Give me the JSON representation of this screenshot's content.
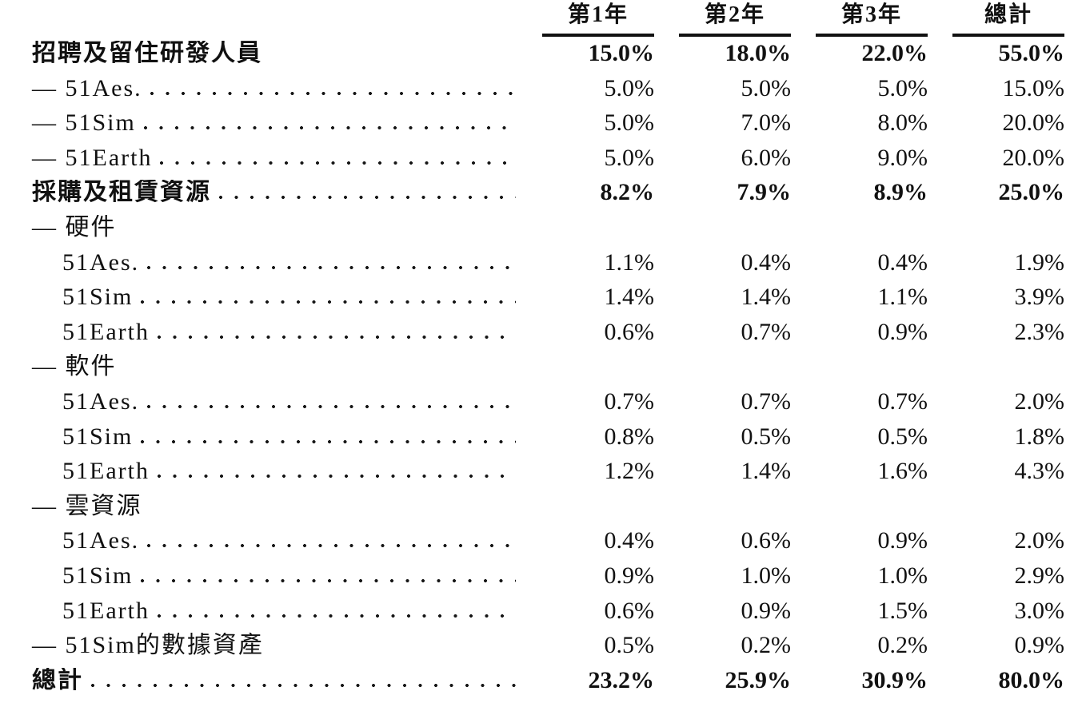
{
  "ink_color": "#111111",
  "table": {
    "columns": [
      "第1年",
      "第2年",
      "第3年",
      "總計"
    ],
    "rows": [
      {
        "label": "招聘及留住研發人員",
        "level": "section",
        "dots": false,
        "values": [
          "15.0%",
          "18.0%",
          "22.0%",
          "55.0%"
        ]
      },
      {
        "label": "— 51Aes.",
        "level": "dash",
        "dots": true,
        "values": [
          "5.0%",
          "5.0%",
          "5.0%",
          "15.0%"
        ]
      },
      {
        "label": "— 51Sim",
        "level": "dash",
        "dots": true,
        "values": [
          "5.0%",
          "7.0%",
          "8.0%",
          "20.0%"
        ]
      },
      {
        "label": "— 51Earth",
        "level": "dash",
        "dots": true,
        "values": [
          "5.0%",
          "6.0%",
          "9.0%",
          "20.0%"
        ]
      },
      {
        "label": "採購及租賃資源",
        "level": "section",
        "dots": true,
        "values": [
          "8.2%",
          "7.9%",
          "8.9%",
          "25.0%"
        ]
      },
      {
        "label": "— 硬件",
        "level": "dash",
        "dots": false,
        "values": [
          "",
          "",
          "",
          ""
        ]
      },
      {
        "label": "51Aes.",
        "level": "sub",
        "dots": true,
        "values": [
          "1.1%",
          "0.4%",
          "0.4%",
          "1.9%"
        ]
      },
      {
        "label": "51Sim",
        "level": "sub",
        "dots": true,
        "values": [
          "1.4%",
          "1.4%",
          "1.1%",
          "3.9%"
        ]
      },
      {
        "label": "51Earth",
        "level": "sub",
        "dots": true,
        "values": [
          "0.6%",
          "0.7%",
          "0.9%",
          "2.3%"
        ]
      },
      {
        "label": "— 軟件",
        "level": "dash",
        "dots": false,
        "values": [
          "",
          "",
          "",
          ""
        ]
      },
      {
        "label": "51Aes.",
        "level": "sub",
        "dots": true,
        "values": [
          "0.7%",
          "0.7%",
          "0.7%",
          "2.0%"
        ]
      },
      {
        "label": "51Sim",
        "level": "sub",
        "dots": true,
        "values": [
          "0.8%",
          "0.5%",
          "0.5%",
          "1.8%"
        ]
      },
      {
        "label": "51Earth",
        "level": "sub",
        "dots": true,
        "values": [
          "1.2%",
          "1.4%",
          "1.6%",
          "4.3%"
        ]
      },
      {
        "label": "— 雲資源",
        "level": "dash",
        "dots": false,
        "values": [
          "",
          "",
          "",
          ""
        ]
      },
      {
        "label": "51Aes.",
        "level": "sub",
        "dots": true,
        "values": [
          "0.4%",
          "0.6%",
          "0.9%",
          "2.0%"
        ]
      },
      {
        "label": "51Sim",
        "level": "sub",
        "dots": true,
        "values": [
          "0.9%",
          "1.0%",
          "1.0%",
          "2.9%"
        ]
      },
      {
        "label": "51Earth",
        "level": "sub",
        "dots": true,
        "values": [
          "0.6%",
          "0.9%",
          "1.5%",
          "3.0%"
        ]
      },
      {
        "label": "— 51Sim的數據資產",
        "level": "dash",
        "dots": false,
        "values": [
          "0.5%",
          "0.2%",
          "0.2%",
          "0.9%"
        ]
      },
      {
        "label": "總計",
        "level": "section",
        "dots": true,
        "values": [
          "23.2%",
          "25.9%",
          "30.9%",
          "80.0%"
        ]
      }
    ]
  }
}
